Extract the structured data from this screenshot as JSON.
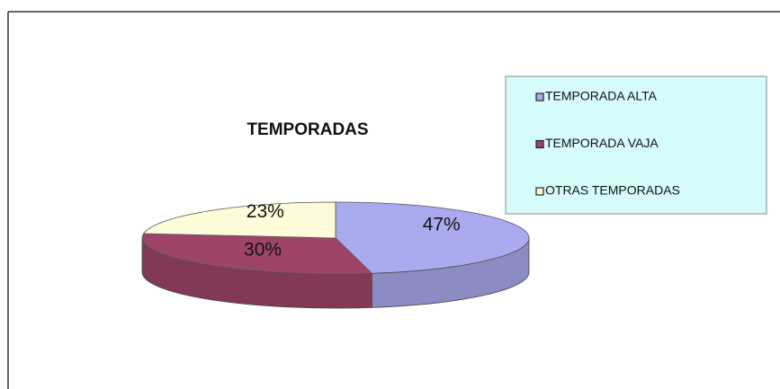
{
  "chart_data": {
    "type": "pie",
    "title": "TEMPORADAS",
    "categories": [
      "TEMPORADA ALTA",
      "TEMPORADA VAJA",
      "OTRAS TEMPORADAS"
    ],
    "values": [
      47,
      30,
      23
    ],
    "value_labels": [
      "47%",
      "30%",
      "23%"
    ],
    "colors": [
      "#a9abee",
      "#9e4469",
      "#fdfbd8"
    ],
    "legend": "right"
  }
}
